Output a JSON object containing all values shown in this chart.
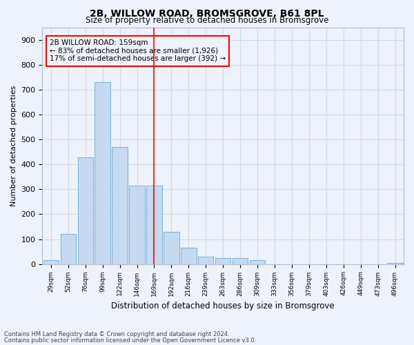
{
  "title1": "2B, WILLOW ROAD, BROMSGROVE, B61 8PL",
  "title2": "Size of property relative to detached houses in Bromsgrove",
  "xlabel": "Distribution of detached houses by size in Bromsgrove",
  "ylabel": "Number of detached properties",
  "categories": [
    "29sqm",
    "52sqm",
    "76sqm",
    "99sqm",
    "122sqm",
    "146sqm",
    "169sqm",
    "192sqm",
    "216sqm",
    "239sqm",
    "263sqm",
    "286sqm",
    "309sqm",
    "333sqm",
    "356sqm",
    "379sqm",
    "403sqm",
    "426sqm",
    "449sqm",
    "473sqm",
    "496sqm"
  ],
  "values": [
    15,
    120,
    430,
    730,
    470,
    315,
    315,
    130,
    65,
    30,
    25,
    25,
    15,
    0,
    0,
    0,
    0,
    0,
    0,
    0,
    5
  ],
  "bar_color": "#c5d9f0",
  "bar_edgecolor": "#7ab0d8",
  "ylim": [
    0,
    950
  ],
  "yticks": [
    0,
    100,
    200,
    300,
    400,
    500,
    600,
    700,
    800,
    900
  ],
  "redline_x": 6.0,
  "annotation_title": "2B WILLOW ROAD: 159sqm",
  "annotation_line1": "← 83% of detached houses are smaller (1,926)",
  "annotation_line2": "17% of semi-detached houses are larger (392) →",
  "footnote1": "Contains HM Land Registry data © Crown copyright and database right 2024.",
  "footnote2": "Contains public sector information licensed under the Open Government Licence v3.0.",
  "background_color": "#eef2fa",
  "grid_color": "#d0daea"
}
